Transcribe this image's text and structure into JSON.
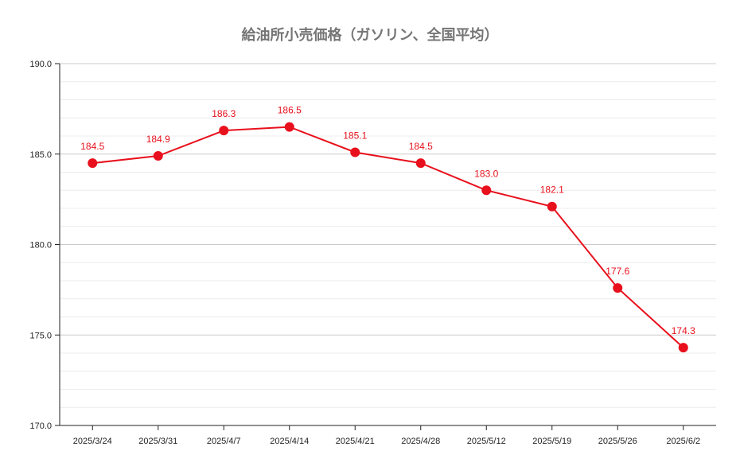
{
  "chart_data": {
    "type": "line",
    "title": "給油所小売価格（ガソリン、全国平均）",
    "xlabel": "",
    "ylabel": "",
    "categories": [
      "2025/3/24",
      "2025/3/31",
      "2025/4/7",
      "2025/4/14",
      "2025/4/21",
      "2025/4/28",
      "2025/5/12",
      "2025/5/19",
      "2025/5/26",
      "2025/6/2"
    ],
    "series": [
      {
        "values": [
          184.5,
          184.9,
          186.3,
          186.5,
          185.1,
          184.5,
          183.0,
          182.1,
          177.6,
          174.3
        ],
        "labels": [
          "184.5",
          "184.9",
          "186.3",
          "186.5",
          "185.1",
          "184.5",
          "183.0",
          "182.1",
          "177.6",
          "174.3"
        ]
      }
    ],
    "ylim": [
      170,
      190
    ],
    "yticks": [
      "190.0",
      "185.0",
      "180.0",
      "175.0",
      "170.0"
    ],
    "grid": true,
    "legend": "none",
    "colors": {
      "series": "#e8101c",
      "grid": "#d9d9d9",
      "axis": "#222222",
      "title": "#757575"
    }
  }
}
